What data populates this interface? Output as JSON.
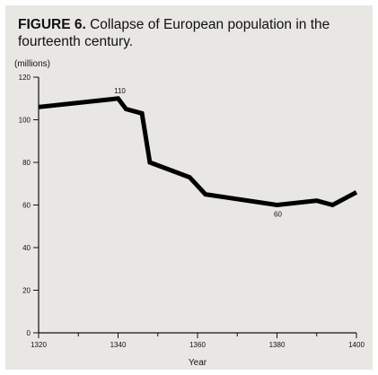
{
  "figure": {
    "number_label": "FIGURE 6.",
    "caption_text": " Collapse of European population in the fourteenth century."
  },
  "chart_data": {
    "type": "line",
    "title": "FIGURE 6. Collapse of European population in the fourteenth century.",
    "xlabel": "Year",
    "ylabel": "(millions)",
    "xlim": [
      1320,
      1400
    ],
    "ylim": [
      0,
      120
    ],
    "x_ticks": [
      1320,
      1340,
      1360,
      1380,
      1400
    ],
    "x_tick_labels": [
      "1320",
      "1340",
      "1360",
      "1380",
      "1400"
    ],
    "y_ticks": [
      0,
      20,
      40,
      60,
      80,
      100,
      120
    ],
    "y_tick_labels": [
      "0",
      "20",
      "40",
      "60",
      "80",
      "100",
      "120"
    ],
    "grid": false,
    "series": [
      {
        "x": [
          1320,
          1340,
          1342,
          1346,
          1348,
          1358,
          1362,
          1380,
          1390,
          1394,
          1400
        ],
        "y": [
          106,
          110,
          105,
          103,
          80,
          73,
          65,
          60,
          62,
          60,
          66
        ]
      }
    ],
    "annotations": [
      {
        "text": "110",
        "x": 1340,
        "y": 110
      },
      {
        "text": "60",
        "x": 1380,
        "y": 60
      }
    ],
    "line_color": "#000000"
  }
}
